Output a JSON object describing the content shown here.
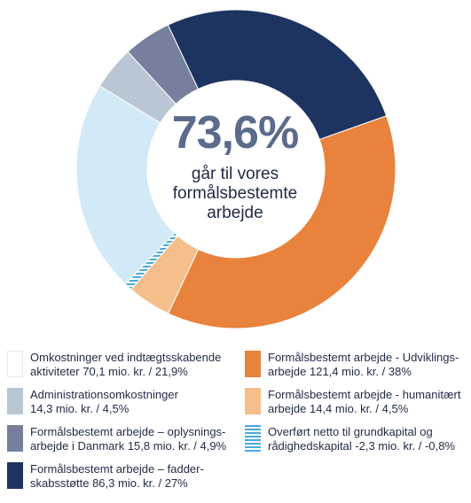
{
  "chart_data": {
    "type": "pie",
    "style": "donut",
    "center": {
      "value": "73,6%",
      "lines": [
        "går til vores",
        "formålsbestemte",
        "arbejde"
      ]
    },
    "slices": [
      {
        "name": "Formålsbestemt arbejde – fadderskabsstøtte",
        "value": 27,
        "amount": 86.3,
        "color": "#1d3461",
        "pattern": false
      },
      {
        "name": "Formålsbestemt arbejde - Udviklingsarbejde",
        "value": 38,
        "amount": 121.4,
        "color": "#e8823d",
        "pattern": false
      },
      {
        "name": "Formålsbestemt arbejde - humanitært arbejde",
        "value": 4.5,
        "amount": 14.4,
        "color": "#f4bf8a",
        "pattern": false
      },
      {
        "name": "Overført netto til grundkapital og rådighedskapital",
        "value": 0.8,
        "amount": -2.3,
        "color": "#4aa8e0",
        "pattern": true
      },
      {
        "name": "Omkostninger ved indtægtsskabende aktiviteter",
        "value": 21.9,
        "amount": 70.1,
        "color": "#d2e9f7",
        "pattern": false
      },
      {
        "name": "Administrationsomkostninger",
        "value": 4.5,
        "amount": 14.3,
        "color": "#b9c7d4",
        "pattern": false
      },
      {
        "name": "Formålsbestemt arbejde – oplysningsarbejde i Danmark",
        "value": 4.9,
        "amount": 15.8,
        "color": "#76809e",
        "pattern": false
      }
    ],
    "legend": {
      "placement": "bottom",
      "items": [
        {
          "lines": [
            "Omkostninger ved indtægtsskabende",
            "aktiviteter 70,1 mio. kr. / 21,9%"
          ],
          "color": "#ffffff",
          "pattern": false,
          "border": true
        },
        {
          "lines": [
            "Administrationsomkostninger",
            "14,3 mio. kr. / 4,5%"
          ],
          "color": "#b9c7d4",
          "pattern": false
        },
        {
          "lines": [
            "Formålsbestemt arbejde – oplysnings-",
            "arbejde i Danmark 15,8 mio. kr. / 4,9%"
          ],
          "color": "#76809e",
          "pattern": false
        },
        {
          "lines": [
            "Formålsbestemt arbejde – fadder-",
            "skabsstøtte 86,3 mio. kr. / 27%"
          ],
          "color": "#1d3461",
          "pattern": false
        },
        {
          "lines": [
            "Formålsbestemt arbejde - Udviklings-",
            "arbejde 121,4 mio. kr. / 38%"
          ],
          "color": "#e8823d",
          "pattern": false
        },
        {
          "lines": [
            "Formålsbestemt arbejde - humanitært",
            "arbejde 14,4 mio. kr. / 4,5%"
          ],
          "color": "#f4bf8a",
          "pattern": false
        },
        {
          "lines": [
            "Overført netto til grundkapital og",
            "rådighedskapital -2,3 mio. kr. / -0,8%"
          ],
          "color": "#4aa8e0",
          "pattern": true
        }
      ]
    }
  }
}
